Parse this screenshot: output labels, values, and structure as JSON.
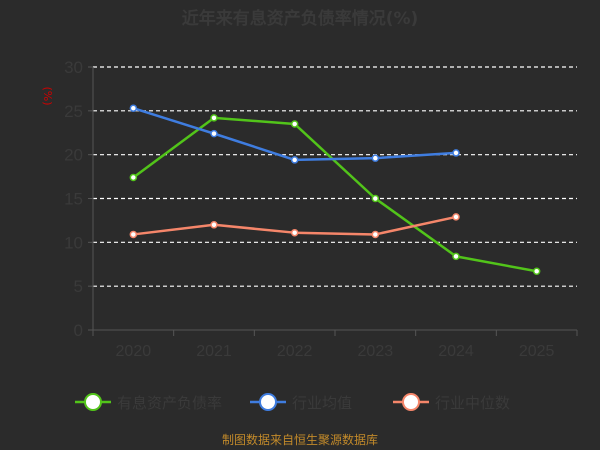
{
  "chart_data": {
    "type": "line",
    "title": "近年来有息资产负债率情况(%)",
    "y_unit": "(%)",
    "categories": [
      "2020",
      "2021",
      "2022",
      "2023",
      "2024",
      "2025"
    ],
    "ylim": [
      0,
      30
    ],
    "yticks": [
      0,
      5,
      10,
      15,
      20,
      25,
      30
    ],
    "grid": true,
    "legend_position": "bottom",
    "series": [
      {
        "name": "有息资产负债率",
        "color": "#52c41a",
        "values": [
          17.4,
          24.2,
          23.5,
          15.0,
          8.4,
          6.7
        ]
      },
      {
        "name": "行业均值",
        "color": "#3f7de0",
        "values": [
          25.3,
          22.4,
          19.4,
          19.6,
          20.2,
          null
        ]
      },
      {
        "name": "行业中位数",
        "color": "#f5866a",
        "values": [
          10.9,
          12.0,
          11.1,
          10.9,
          12.9,
          null
        ]
      }
    ],
    "source": "制图数据来自恒生聚源数据库"
  }
}
